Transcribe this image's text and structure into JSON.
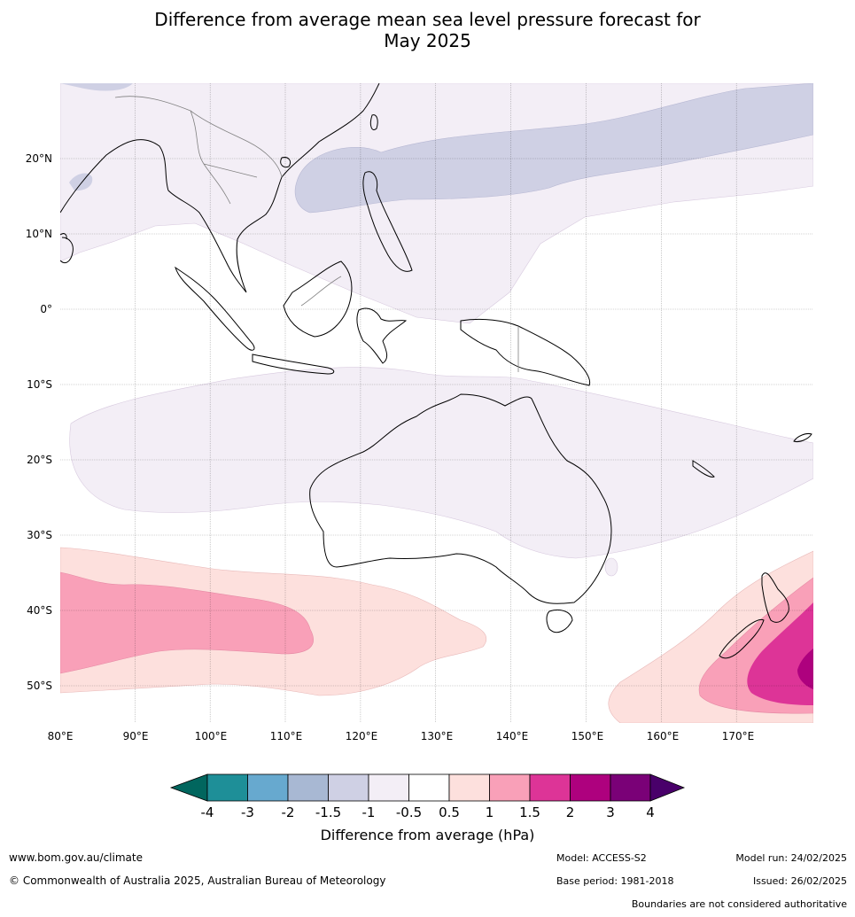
{
  "title": {
    "line1": "Difference from average mean sea level pressure forecast for",
    "line2": "May 2025"
  },
  "map": {
    "lat_labels": [
      "20°N",
      "10°N",
      "0°",
      "10°S",
      "20°S",
      "30°S",
      "40°S",
      "50°S"
    ],
    "lon_labels": [
      "80°E",
      "90°E",
      "100°E",
      "110°E",
      "120°E",
      "130°E",
      "140°E",
      "150°E",
      "160°E",
      "170°E"
    ],
    "lat_range": [
      -55,
      30
    ],
    "lon_range": [
      80,
      180
    ]
  },
  "colorbar": {
    "title": "Difference from average (hPa)",
    "ticks": [
      "-4",
      "-3",
      "-2",
      "-1.5",
      "-1",
      "-0.5",
      "0.5",
      "1",
      "1.5",
      "2",
      "3",
      "4"
    ],
    "colors": [
      "#1e8f98",
      "#67a9cf",
      "#a8b8d3",
      "#cfd0e4",
      "#f3eef6",
      "#ffffff",
      "#fde0dd",
      "#f9a0b8",
      "#dd3497",
      "#ae017e",
      "#7a0177"
    ],
    "under_color": "#01665e",
    "over_color": "#49006a"
  },
  "footer": {
    "website": "www.bom.gov.au/climate",
    "copyright": "© Commonwealth of Australia 2025, Australian Bureau of Meteorology",
    "model": "Model: ACCESS-S2",
    "base_period": "Base period: 1981-2018",
    "model_run": "Model run: 24/02/2025",
    "issued": "Issued: 26/02/2025",
    "disclaimer": "Boundaries are not considered authoritative"
  }
}
